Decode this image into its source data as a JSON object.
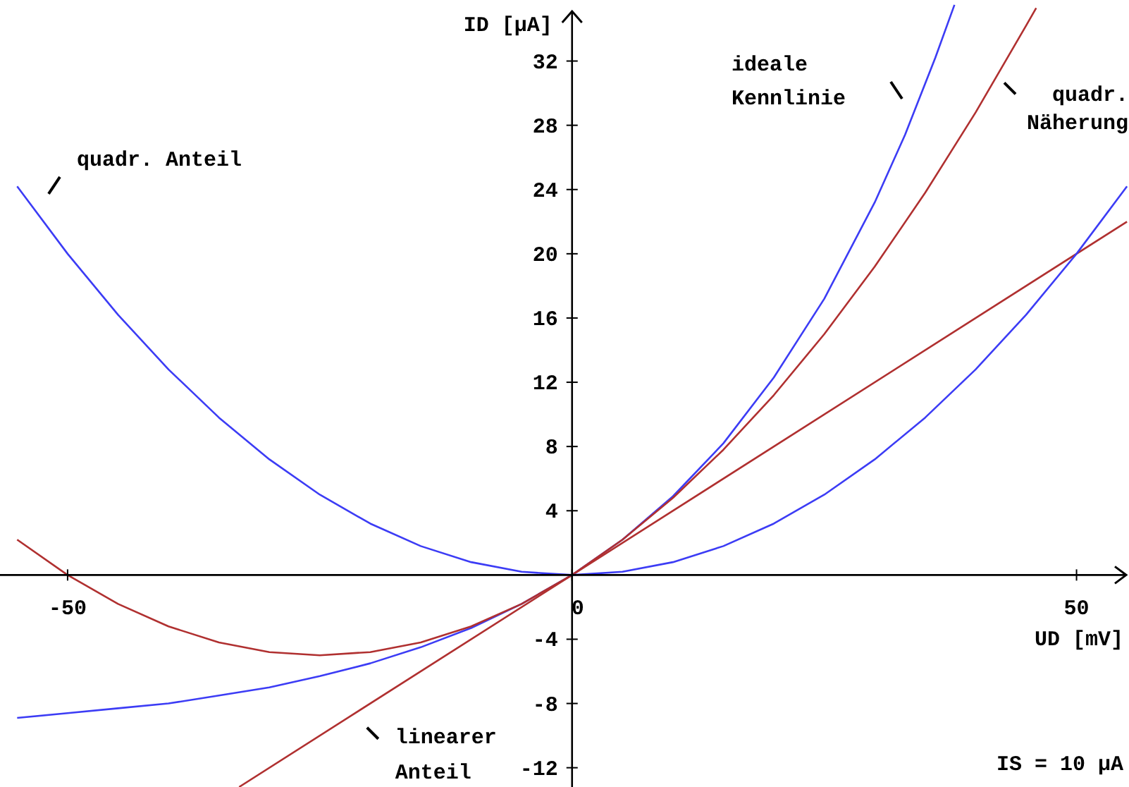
{
  "chart_data": {
    "type": "line",
    "xlabel": "UD [mV]",
    "ylabel": "ID [μA]",
    "xlim": [
      -56.7,
      55.2
    ],
    "ylim": [
      -13.2,
      35.8
    ],
    "xticks": [
      -50,
      0,
      50
    ],
    "yticks": [
      -12,
      -8,
      -4,
      4,
      8,
      12,
      16,
      20,
      24,
      28,
      32
    ],
    "series": [
      {
        "color": "#3c3cf5",
        "x": [
          -55,
          -50,
          -45,
          -40,
          -35,
          -30,
          -25,
          -20,
          -15,
          -10,
          -5,
          0,
          5,
          10,
          15,
          20,
          25,
          30,
          33,
          36,
          37.9
        ],
        "values": [
          -8.9,
          -8.6,
          -8.3,
          -8.0,
          -7.5,
          -7.0,
          -6.3,
          -5.5,
          -4.5,
          -3.3,
          -1.8,
          0,
          2.2,
          4.9,
          8.2,
          12.3,
          17.2,
          23.2,
          27.4,
          32.2,
          35.5
        ]
      },
      {
        "color": "#b03030",
        "x": [
          -55,
          -50,
          -45,
          -40,
          -35,
          -30,
          -25,
          -20,
          -15,
          -10,
          -5,
          0,
          5,
          10,
          15,
          20,
          25,
          30,
          35,
          40,
          45,
          46
        ],
        "values": [
          2.2,
          0,
          -1.8,
          -3.2,
          -4.2,
          -4.8,
          -5,
          -4.8,
          -4.2,
          -3.2,
          -1.8,
          0,
          2.2,
          4.8,
          7.8,
          11.2,
          15,
          19.2,
          23.8,
          28.8,
          34.2,
          35.3
        ]
      },
      {
        "color": "#b03030",
        "x": [
          -33,
          0,
          55
        ],
        "values": [
          -13.2,
          0,
          22
        ]
      },
      {
        "color": "#3c3cf5",
        "x": [
          -55,
          -50,
          -45,
          -40,
          -35,
          -30,
          -25,
          -20,
          -15,
          -10,
          -5,
          0,
          5,
          10,
          15,
          20,
          25,
          30,
          35,
          40,
          45,
          50,
          55
        ],
        "values": [
          24.2,
          20,
          16.2,
          12.8,
          9.8,
          7.2,
          5,
          3.2,
          1.8,
          0.8,
          0.2,
          0,
          0.2,
          0.8,
          1.8,
          3.2,
          5,
          7.2,
          9.8,
          12.8,
          16.2,
          20,
          24.2
        ]
      }
    ],
    "annotations": [
      "ideale\nKennlinie",
      {
        "text": "quadr.\nNäherung",
        "x": 42,
        "y": 31
      },
      {
        "text": "quadr. Anteil",
        "x": -53,
        "y": 22.5
      },
      {
        "text": "linearer\nAnteil",
        "x": -22,
        "y": -8.8
      },
      "IS = 10 μA"
    ]
  }
}
